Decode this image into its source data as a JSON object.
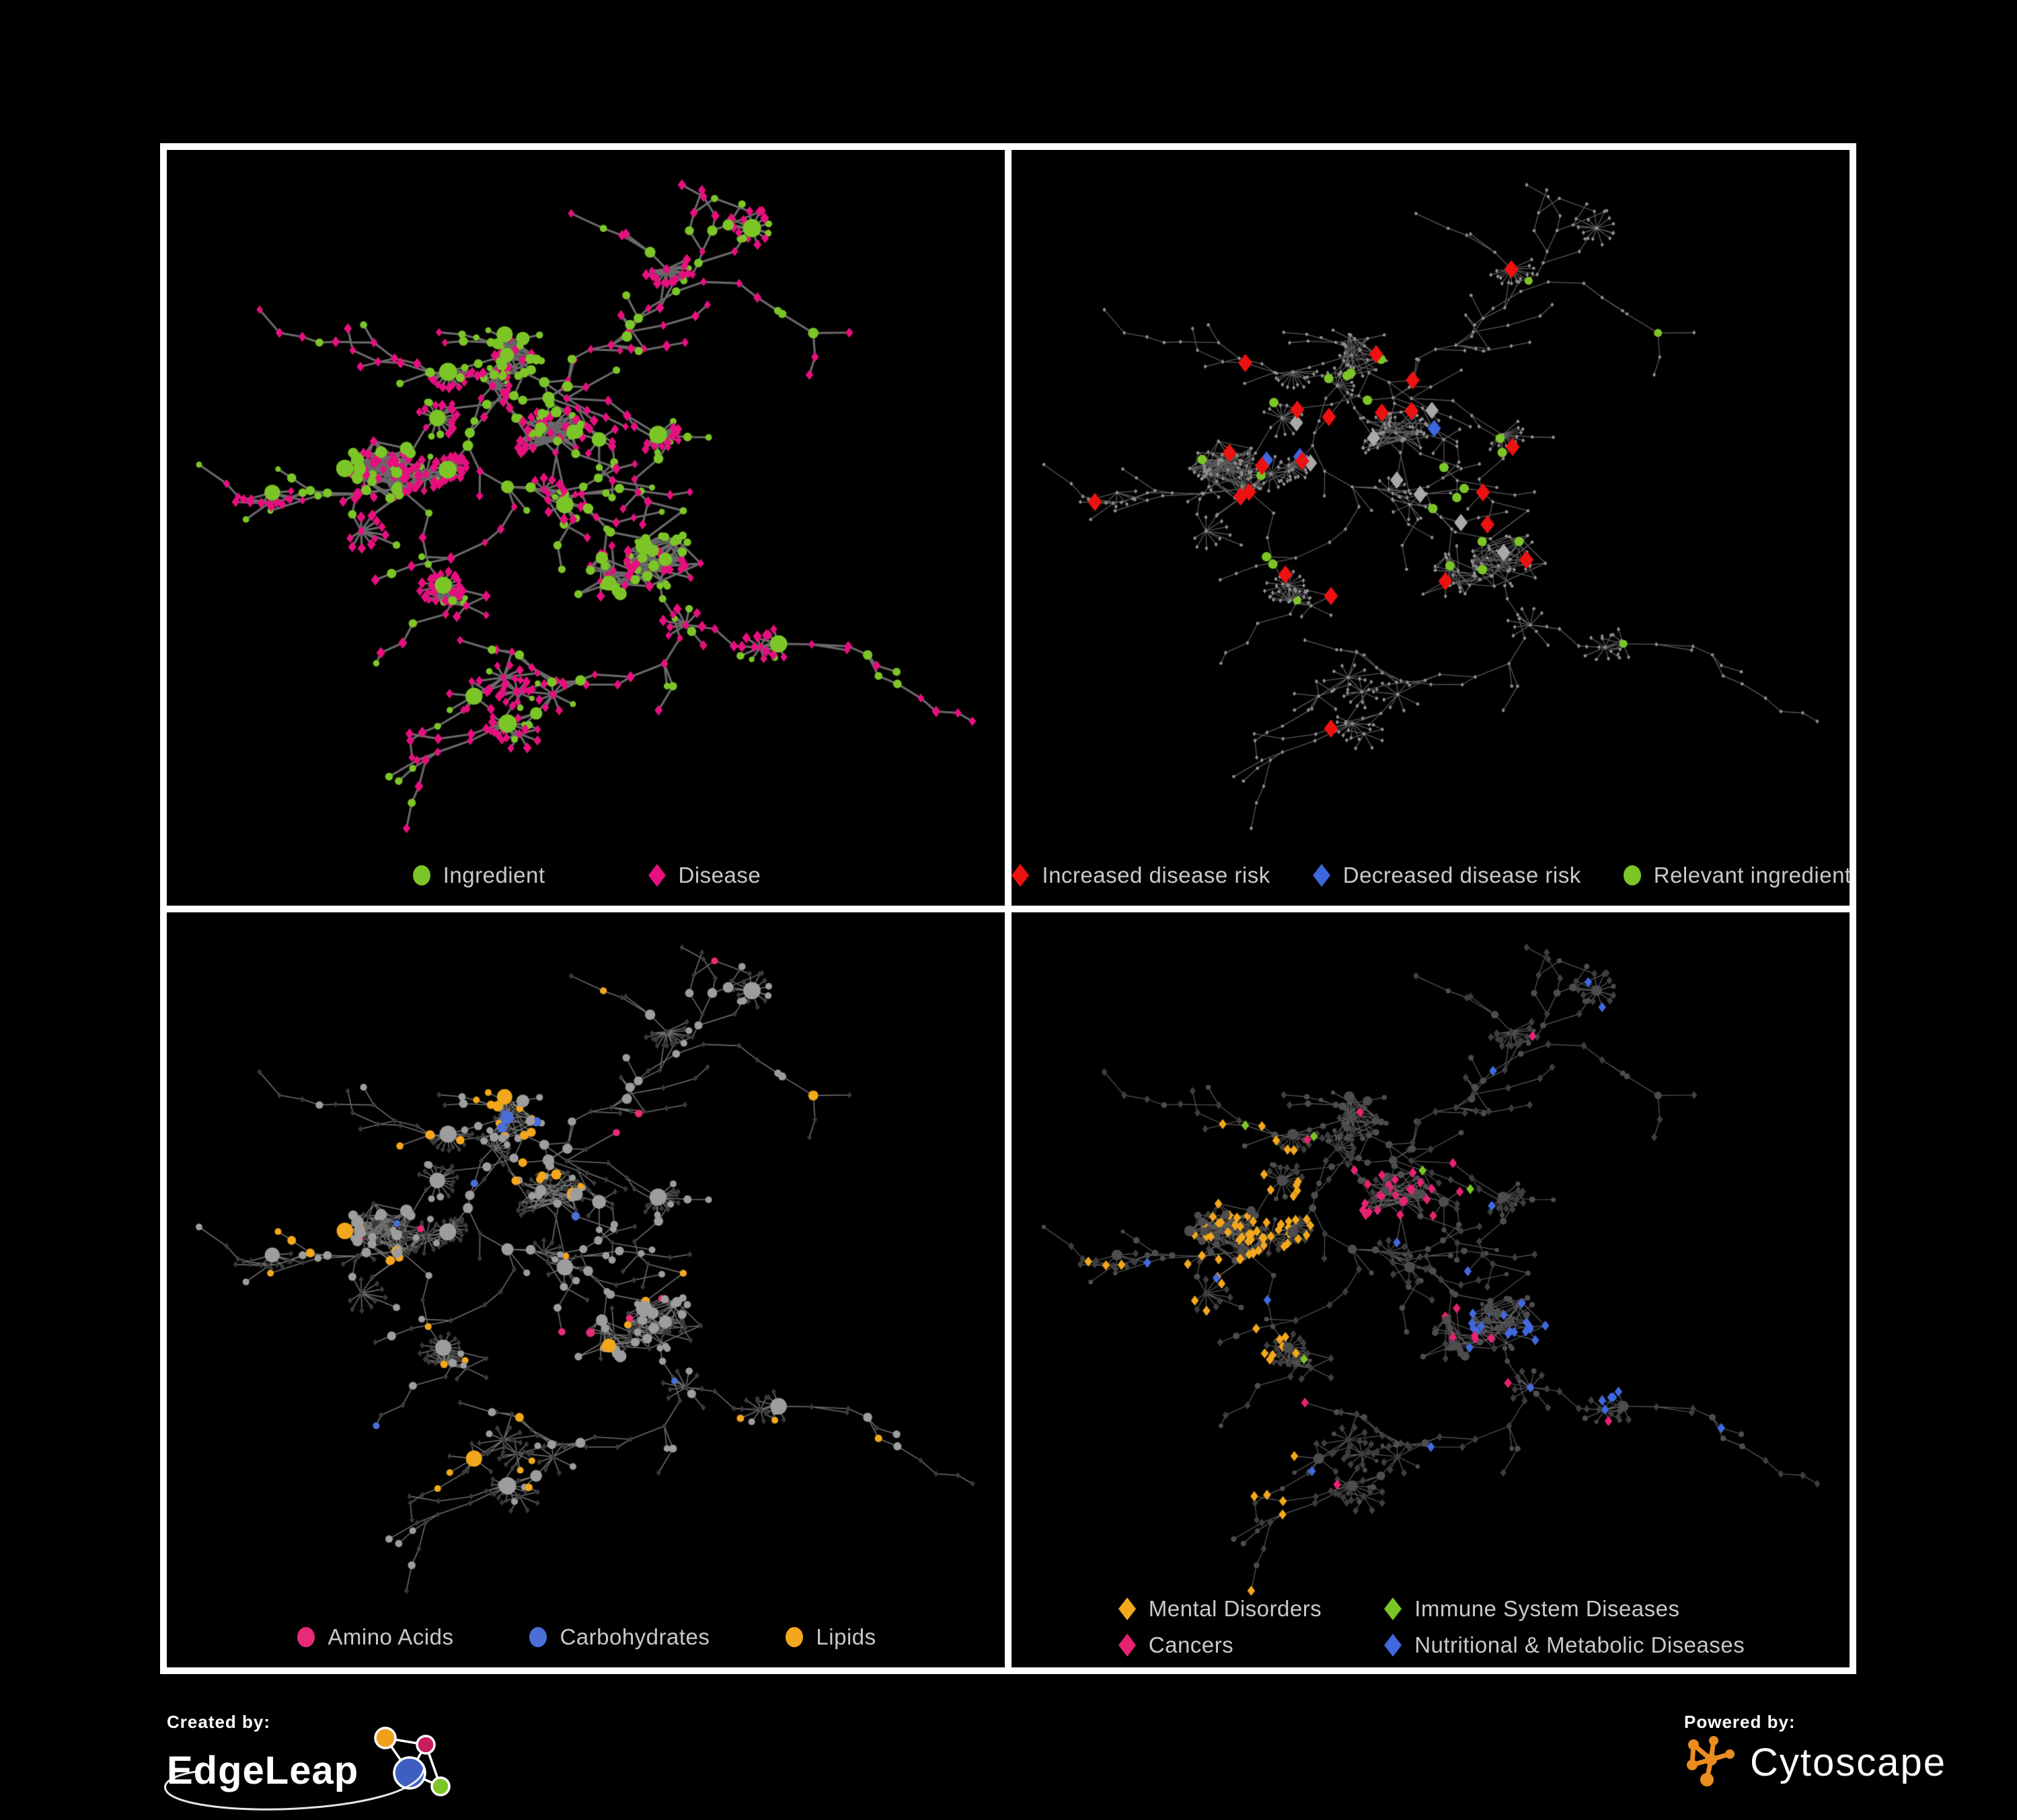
{
  "page": {
    "background_color": "#000000",
    "frame_color": "#ffffff"
  },
  "panels": [
    {
      "id": "ingredient-disease-network",
      "legend": [
        {
          "shape": "circle",
          "color": "#7CC527",
          "label": "Ingredient"
        },
        {
          "shape": "diamond",
          "color": "#E5107E",
          "label": "Disease"
        }
      ]
    },
    {
      "id": "disease-risk-network",
      "legend": [
        {
          "shape": "diamond",
          "color": "#EE1111",
          "label": "Increased disease risk"
        },
        {
          "shape": "diamond",
          "color": "#3E66DD",
          "label": "Decreased disease risk"
        },
        {
          "shape": "circle",
          "color": "#7CC527",
          "label": "Relevant ingredient"
        }
      ]
    },
    {
      "id": "macronutrient-network",
      "legend": [
        {
          "shape": "circle",
          "color": "#E72B77",
          "label": "Amino Acids"
        },
        {
          "shape": "circle",
          "color": "#4A6FD6",
          "label": "Carbohydrates"
        },
        {
          "shape": "circle",
          "color": "#F3A71C",
          "label": "Lipids"
        }
      ]
    },
    {
      "id": "disease-category-network",
      "legend_columns": 2,
      "legend": [
        {
          "shape": "diamond",
          "color": "#F3A71C",
          "label": "Mental Disorders"
        },
        {
          "shape": "diamond",
          "color": "#7CC527",
          "label": "Immune System Diseases"
        },
        {
          "shape": "diamond",
          "color": "#E62373",
          "label": "Cancers"
        },
        {
          "shape": "diamond",
          "color": "#4169DF",
          "label": "Nutritional & Metabolic Diseases"
        }
      ]
    }
  ],
  "footer": {
    "created_by_label": "Created by:",
    "edgeleap_name": "EdgeLeap",
    "powered_by_label": "Powered by:",
    "cytoscape_name": "Cytoscape",
    "cytoscape_orange": "#EA8C1F",
    "edgeleap_node_colors": [
      "#F0A11B",
      "#C81E5F",
      "#3F5FC0",
      "#7CC527"
    ]
  },
  "network_style": {
    "seed": 13,
    "tree_nodes": 320,
    "fans": 26,
    "cluster_anchors": [
      [
        0.4,
        0.27
      ],
      [
        0.22,
        0.43
      ],
      [
        0.47,
        0.4
      ],
      [
        0.62,
        0.57
      ],
      [
        0.5,
        0.6
      ]
    ],
    "cluster_sizes": [
      26,
      64,
      44,
      36,
      24
    ],
    "extra_edges": 80,
    "panels": {
      "ingredient-disease-network": {
        "edge_color": "#6E6E6E",
        "edge_width": 3.2,
        "edge_alpha": 0.95,
        "ingredient_color": "#7CC527",
        "disease_color": "#E5107E"
      },
      "disease-risk-network": {
        "edge_color": "#6A6A6A",
        "edge_width": 1.3,
        "edge_alpha": 0.85,
        "base_color": "#8F8F8F",
        "increased_color": "#EE1111",
        "decreased_color": "#3E66DD",
        "neutral_color": "#A9A9A9",
        "ingredient_color": "#7CC527"
      },
      "macronutrient-network": {
        "edge_color": "#8A8A8A",
        "edge_width": 1.6,
        "edge_alpha": 0.8,
        "ingredient_color": "#9D9D9D",
        "disease_color": "#3A3A3A",
        "amino_color": "#E72B77",
        "carb_color": "#4A6FD6",
        "lipid_color": "#F3A71C"
      },
      "disease-category-network": {
        "edge_color": "#7B7B7B",
        "edge_width": 1.2,
        "edge_alpha": 0.75,
        "ingredient_color": "#4D4D4D",
        "disease_color": "#3E3E3E",
        "mental_color": "#F3A71C",
        "immune_color": "#7CC527",
        "cancer_color": "#E62373",
        "nutritional_color": "#4169DF"
      }
    }
  }
}
